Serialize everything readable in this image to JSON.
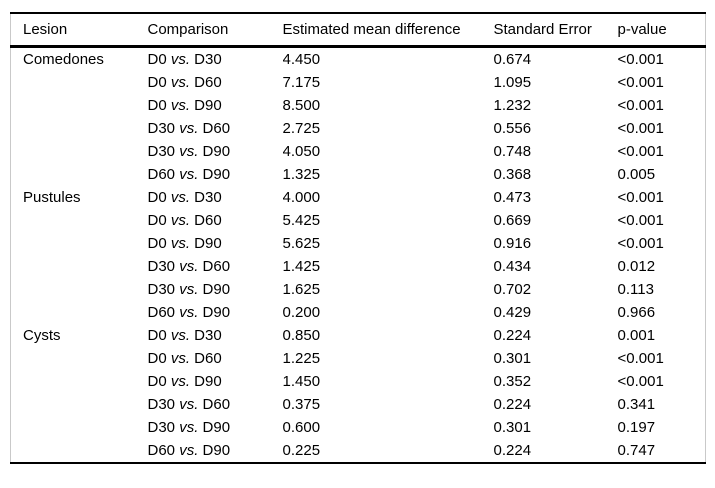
{
  "table": {
    "columns": [
      "Lesion",
      "Comparison",
      "Estimated mean difference",
      "Standard Error",
      "p-value"
    ],
    "groups": [
      {
        "lesion": "Comedones",
        "rows": [
          {
            "comparison": "D0 vs. D30",
            "estimated_mean_difference": "4.450",
            "standard_error": "0.674",
            "p_value": "<0.001"
          },
          {
            "comparison": "D0 vs. D60",
            "estimated_mean_difference": "7.175",
            "standard_error": "1.095",
            "p_value": "<0.001"
          },
          {
            "comparison": "D0 vs. D90",
            "estimated_mean_difference": "8.500",
            "standard_error": "1.232",
            "p_value": "<0.001"
          },
          {
            "comparison": "D30 vs. D60",
            "estimated_mean_difference": "2.725",
            "standard_error": "0.556",
            "p_value": "<0.001"
          },
          {
            "comparison": "D30 vs. D90",
            "estimated_mean_difference": "4.050",
            "standard_error": "0.748",
            "p_value": "<0.001"
          },
          {
            "comparison": "D60 vs. D90",
            "estimated_mean_difference": "1.325",
            "standard_error": "0.368",
            "p_value": "0.005"
          }
        ]
      },
      {
        "lesion": "Pustules",
        "rows": [
          {
            "comparison": "D0 vs. D30",
            "estimated_mean_difference": "4.000",
            "standard_error": "0.473",
            "p_value": "<0.001"
          },
          {
            "comparison": "D0 vs. D60",
            "estimated_mean_difference": "5.425",
            "standard_error": "0.669",
            "p_value": "<0.001"
          },
          {
            "comparison": "D0 vs. D90",
            "estimated_mean_difference": "5.625",
            "standard_error": "0.916",
            "p_value": "<0.001"
          },
          {
            "comparison": "D30 vs. D60",
            "estimated_mean_difference": "1.425",
            "standard_error": "0.434",
            "p_value": "0.012"
          },
          {
            "comparison": "D30 vs. D90",
            "estimated_mean_difference": "1.625",
            "standard_error": "0.702",
            "p_value": "0.113"
          },
          {
            "comparison": "D60 vs. D90",
            "estimated_mean_difference": "0.200",
            "standard_error": "0.429",
            "p_value": "0.966"
          }
        ]
      },
      {
        "lesion": "Cysts",
        "rows": [
          {
            "comparison": "D0 vs. D30",
            "estimated_mean_difference": "0.850",
            "standard_error": "0.224",
            "p_value": "0.001"
          },
          {
            "comparison": "D0 vs. D60",
            "estimated_mean_difference": "1.225",
            "standard_error": "0.301",
            "p_value": "<0.001"
          },
          {
            "comparison": "D0 vs. D90",
            "estimated_mean_difference": "1.450",
            "standard_error": "0.352",
            "p_value": "<0.001"
          },
          {
            "comparison": "D30 vs. D60",
            "estimated_mean_difference": "0.375",
            "standard_error": "0.224",
            "p_value": "0.341"
          },
          {
            "comparison": "D30 vs. D90",
            "estimated_mean_difference": "0.600",
            "standard_error": "0.301",
            "p_value": "0.197"
          },
          {
            "comparison": "D60 vs. D90",
            "estimated_mean_difference": "0.225",
            "standard_error": "0.224",
            "p_value": "0.747"
          }
        ]
      }
    ]
  }
}
